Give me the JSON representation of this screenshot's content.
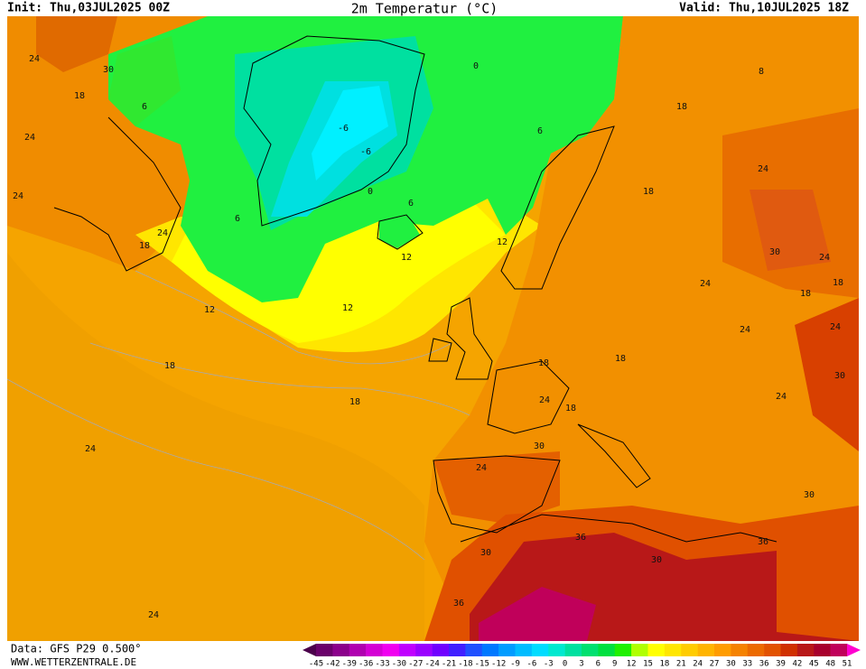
{
  "header": {
    "init": "Init: Thu,03JUL2025 00Z",
    "title": "2m Temperatur (°C)",
    "valid": "Valid: Thu,10JUL2025 18Z"
  },
  "map": {
    "contour_labels": [
      "24",
      "30",
      "18",
      "6",
      "24",
      "24",
      "24",
      "18",
      "6",
      "-6",
      "-6",
      "0",
      "0",
      "6",
      "6",
      "12",
      "12",
      "12",
      "18",
      "18",
      "24",
      "24",
      "18",
      "8",
      "24",
      "18",
      "30",
      "24",
      "24",
      "18",
      "18",
      "24",
      "24",
      "18",
      "18",
      "30",
      "24",
      "18",
      "24",
      "30",
      "24",
      "30",
      "36",
      "30",
      "30",
      "36",
      "36",
      "12"
    ]
  },
  "colorbar": {
    "labels": [
      "-45",
      "-42",
      "-39",
      "-36",
      "-33",
      "-30",
      "-27",
      "-24",
      "-21",
      "-18",
      "-15",
      "-12",
      "-9",
      "-6",
      "-3",
      "0",
      "3",
      "6",
      "9",
      "12",
      "15",
      "18",
      "21",
      "24",
      "27",
      "30",
      "33",
      "36",
      "39",
      "42",
      "45",
      "48",
      "51"
    ],
    "colors": [
      "#4b004b",
      "#6a006a",
      "#8b008b",
      "#b000b0",
      "#d400d4",
      "#f000f0",
      "#c000ff",
      "#9a00ff",
      "#7000ff",
      "#4020ff",
      "#2050ff",
      "#0078ff",
      "#009cff",
      "#00bcff",
      "#00dcff",
      "#00e8d0",
      "#00e0a0",
      "#00e070",
      "#00e040",
      "#20f000",
      "#b0ff00",
      "#ffff00",
      "#ffe600",
      "#ffcc00",
      "#ffb400",
      "#ff9c00",
      "#f58200",
      "#ec6a00",
      "#e25200",
      "#d03000",
      "#b81818",
      "#a8002c",
      "#c0005a",
      "#ff00d0"
    ]
  },
  "footer": {
    "data": "Data: GFS P29 0.500°",
    "site": "WWW.WETTERZENTRALE.DE"
  }
}
